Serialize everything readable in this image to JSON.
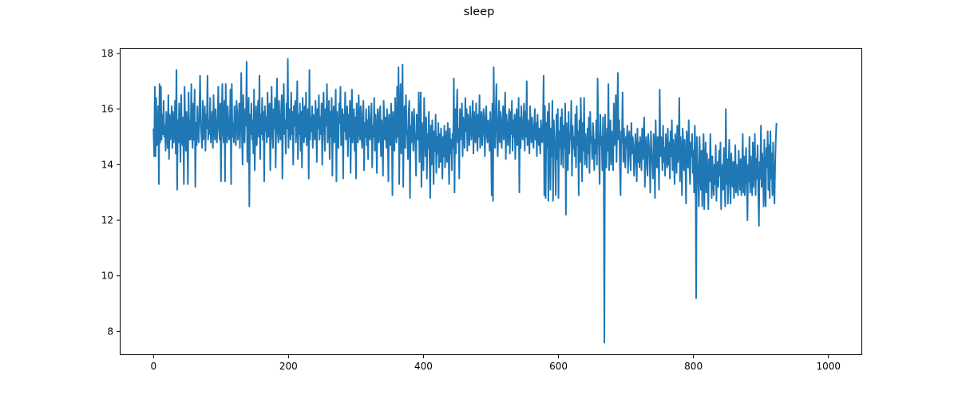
{
  "chart_data": {
    "type": "line",
    "title": "sleep",
    "xlabel": "",
    "ylabel": "",
    "xlim": [
      -50,
      1050
    ],
    "ylim": [
      7.15,
      18.2
    ],
    "x_ticks": [
      0,
      200,
      400,
      600,
      800,
      1000
    ],
    "y_ticks": [
      8,
      10,
      12,
      14,
      16,
      18
    ],
    "grid": false,
    "legend": "none",
    "series": [
      {
        "color": "#1f77b4",
        "x_start": 0,
        "x_step": 1,
        "values": [
          15.3,
          14.3,
          16.8,
          14.3,
          16.4,
          14.7,
          14.8,
          16.1,
          13.3,
          16.9,
          14.8,
          16.8,
          14.9,
          15.8,
          15.1,
          16.3,
          15.0,
          15.4,
          14.5,
          15.9,
          15.1,
          14.6,
          16.5,
          14.2,
          15.8,
          14.9,
          15.3,
          16.1,
          14.6,
          15.9,
          14.8,
          15.2,
          16.3,
          14.4,
          17.4,
          13.1,
          15.6,
          14.8,
          16.2,
          15.3,
          14.1,
          16.5,
          15.1,
          14.7,
          15.7,
          13.3,
          16.8,
          15.4,
          14.5,
          15.9,
          15.1,
          13.3,
          16.6,
          14.9,
          15.6,
          14.9,
          16.9,
          15.3,
          14.6,
          16.2,
          14.9,
          16.7,
          13.2,
          15.5,
          14.7,
          16.1,
          15.2,
          14.8,
          15.9,
          17.2,
          15.5,
          15.0,
          14.6,
          16.3,
          14.9,
          15.2,
          16.1,
          14.5,
          15.8,
          15.3,
          17.2,
          14.9,
          15.6,
          15.1,
          16.4,
          14.8,
          15.2,
          15.9,
          14.6,
          16.5,
          15.3,
          14.9,
          16.0,
          15.1,
          14.8,
          15.7,
          16.8,
          15.3,
          14.9,
          16.2,
          13.4,
          15.8,
          16.9,
          15.1,
          14.8,
          16.3,
          13.4,
          16.9,
          15.2,
          14.8,
          16.1,
          15.5,
          14.9,
          15.3,
          16.7,
          13.3,
          16.9,
          15.0,
          15.5,
          14.8,
          16.1,
          15.3,
          14.7,
          16.3,
          15.9,
          14.9,
          15.4,
          16.2,
          14.6,
          15.7,
          17.3,
          15.1,
          14.0,
          16.5,
          15.2,
          14.8,
          16.0,
          15.4,
          17.7,
          14.1,
          15.3,
          16.4,
          12.5,
          15.8,
          15.1,
          16.2,
          14.9,
          15.6,
          14.4,
          16.7,
          13.8,
          15.4,
          16.1,
          14.7,
          15.5,
          16.3,
          15.0,
          17.2,
          14.2,
          15.8,
          15.1,
          16.4,
          14.9,
          15.9,
          13.4,
          16.1,
          15.2,
          15.7,
          14.8,
          16.6,
          15.0,
          15.9,
          16.2,
          13.8,
          15.4,
          16.8,
          15.1,
          14.6,
          16.0,
          15.3,
          16.4,
          13.9,
          15.8,
          17.1,
          15.2,
          14.8,
          16.3,
          15.5,
          14.9,
          15.8,
          16.5,
          13.5,
          15.7,
          16.9,
          15.1,
          15.6,
          14.4,
          16.2,
          15.3,
          17.8,
          14.6,
          16.0,
          15.5,
          14.9,
          16.6,
          15.1,
          15.9,
          14.0,
          16.1,
          15.4,
          16.3,
          14.8,
          15.6,
          17.0,
          14.2,
          15.8,
          15.1,
          16.2,
          14.5,
          15.9,
          13.9,
          16.4,
          15.3,
          14.8,
          16.1,
          15.0,
          16.6,
          14.7,
          15.5,
          16.0,
          13.5,
          17.4,
          14.9,
          15.7,
          15.2,
          16.1,
          14.6,
          15.8,
          15.3,
          14.9,
          16.3,
          15.6,
          14.1,
          16.0,
          15.3,
          16.5,
          14.9,
          15.7,
          15.1,
          16.2,
          14.0,
          15.8,
          16.6,
          15.2,
          14.5,
          16.0,
          15.4,
          16.9,
          14.8,
          15.5,
          16.3,
          14.2,
          15.9,
          15.0,
          16.4,
          13.6,
          15.7,
          16.1,
          14.8,
          15.4,
          16.7,
          13.4,
          15.9,
          15.1,
          14.6,
          16.2,
          15.5,
          16.8,
          14.7,
          15.3,
          16.0,
          13.5,
          15.8,
          15.2,
          16.6,
          14.9,
          15.5,
          16.1,
          14.3,
          15.8,
          15.0,
          16.3,
          13.7,
          15.6,
          16.7,
          14.8,
          15.3,
          16.0,
          14.5,
          15.7,
          13.5,
          16.2,
          15.1,
          14.8,
          16.5,
          15.4,
          14.9,
          16.1,
          15.2,
          14.6,
          15.8,
          16.3,
          13.8,
          15.5,
          15.0,
          16.0,
          14.7,
          15.6,
          14.2,
          16.1,
          15.3,
          14.9,
          15.7,
          16.2,
          13.9,
          15.4,
          15.0,
          16.4,
          14.5,
          15.8,
          15.2,
          13.7,
          16.0,
          15.5,
          14.8,
          15.9,
          16.1,
          14.3,
          15.6,
          15.1,
          13.6,
          16.3,
          15.4,
          14.9,
          15.7,
          14.6,
          16.0,
          15.2,
          13.4,
          15.8,
          15.3,
          14.7,
          16.2,
          15.5,
          12.9,
          15.9,
          15.1,
          14.5,
          16.4,
          15.3,
          14.8,
          16.8,
          15.0,
          17.5,
          13.3,
          15.6,
          16.9,
          14.4,
          15.2,
          17.6,
          13.2,
          15.7,
          16.1,
          14.6,
          16.5,
          15.3,
          15.0,
          14.2,
          15.9,
          16.3,
          12.8,
          15.4,
          14.8,
          15.9,
          15.1,
          14.5,
          16.0,
          15.2,
          14.7,
          13.6,
          15.8,
          15.0,
          14.9,
          16.6,
          14.1,
          15.3,
          16.6,
          13.2,
          15.5,
          14.8,
          13.8,
          16.4,
          15.0,
          14.3,
          15.7,
          13.5,
          15.1,
          14.6,
          15.9,
          14.2,
          12.8,
          15.4,
          14.0,
          15.6,
          14.8,
          13.3,
          15.2,
          14.5,
          15.8,
          13.7,
          15.0,
          14.4,
          15.5,
          13.9,
          15.1,
          14.1,
          15.3,
          14.6,
          13.5,
          15.0,
          14.3,
          15.4,
          13.9,
          14.8,
          15.2,
          14.1,
          15.5,
          14.7,
          13.3,
          15.3,
          14.4,
          14.9,
          13.8,
          15.1,
          14.6,
          17.1,
          13.0,
          16.0,
          14.4,
          15.6,
          16.7,
          14.8,
          15.3,
          13.5,
          16.0,
          14.9,
          15.5,
          16.2,
          14.3,
          15.7,
          15.1,
          14.6,
          16.4,
          15.2,
          16.0,
          14.5,
          15.8,
          15.2,
          14.7,
          16.1,
          15.4,
          14.9,
          15.6,
          16.3,
          14.4,
          15.9,
          15.1,
          14.8,
          16.2,
          15.3,
          14.5,
          15.8,
          15.0,
          16.5,
          14.6,
          15.4,
          15.9,
          14.7,
          15.2,
          16.0,
          15.5,
          14.3,
          15.7,
          16.1,
          15.0,
          14.8,
          15.6,
          15.3,
          14.5,
          15.9,
          15.1,
          12.9,
          16.2,
          12.7,
          17.5,
          15.2,
          14.6,
          15.8,
          16.9,
          15.0,
          14.3,
          15.5,
          16.3,
          14.8,
          15.9,
          15.2,
          14.6,
          15.7,
          16.1,
          14.9,
          15.4,
          16.6,
          14.2,
          15.8,
          15.3,
          14.7,
          15.5,
          16.0,
          14.4,
          15.9,
          15.1,
          16.3,
          14.5,
          15.6,
          15.0,
          15.8,
          14.2,
          15.4,
          16.0,
          14.7,
          15.2,
          16.4,
          13.0,
          15.7,
          14.6,
          16.1,
          15.3,
          14.9,
          15.5,
          16.2,
          14.5,
          15.9,
          15.0,
          17.0,
          14.7,
          15.6,
          15.2,
          14.4,
          16.1,
          15.3,
          14.8,
          15.7,
          15.1,
          14.6,
          15.4,
          16.0,
          14.9,
          15.5,
          14.3,
          15.8,
          15.0,
          14.7,
          15.3,
          14.4,
          15.6,
          15.1,
          14.8,
          15.4,
          17.2,
          12.9,
          16.1,
          12.8,
          15.5,
          14.6,
          15.9,
          12.7,
          16.2,
          14.9,
          13.1,
          15.3,
          14.3,
          16.3,
          12.7,
          15.6,
          15.0,
          14.5,
          12.9,
          15.8,
          14.2,
          16.0,
          12.8,
          15.2,
          14.6,
          15.7,
          14.0,
          16.0,
          15.1,
          13.9,
          15.4,
          14.6,
          16.2,
          12.2,
          15.5,
          14.8,
          13.8,
          15.9,
          14.4,
          15.1,
          14.9,
          16.3,
          13.6,
          15.4,
          14.6,
          15.0,
          14.3,
          15.8,
          13.9,
          16.1,
          14.7,
          15.2,
          12.9,
          15.6,
          14.1,
          16.4,
          15.0,
          13.4,
          15.5,
          14.5,
          16.4,
          14.0,
          15.1,
          14.7,
          13.9,
          15.3,
          14.4,
          15.7,
          13.7,
          15.9,
          14.8,
          15.0,
          14.2,
          15.5,
          15.1,
          13.8,
          14.9,
          14.4,
          15.6,
          14.0,
          17.1,
          15.2,
          14.5,
          13.3,
          15.8,
          14.7,
          15.0,
          13.8,
          15.7,
          14.1,
          7.6,
          15.8,
          14.2,
          13.9,
          15.3,
          14.5,
          16.9,
          13.8,
          14.8,
          15.6,
          14.0,
          15.2,
          14.5,
          13.8,
          16.2,
          14.7,
          15.1,
          16.5,
          14.1,
          15.4,
          17.3,
          14.9,
          15.6,
          14.0,
          12.9,
          15.2,
          14.8,
          16.6,
          14.1,
          15.3,
          14.5,
          13.9,
          15.0,
          14.6,
          15.4,
          13.7,
          14.9,
          15.2,
          14.3,
          13.8,
          15.5,
          14.4,
          15.0,
          14.7,
          13.6,
          14.2,
          15.1,
          14.4,
          13.4,
          15.3,
          14.1,
          14.8,
          13.9,
          15.0,
          14.6,
          13.8,
          15.3,
          14.2,
          14.9,
          15.7,
          13.2,
          14.5,
          15.0,
          14.0,
          13.6,
          15.1,
          14.7,
          14.3,
          13.0,
          15.2,
          14.4,
          14.1,
          13.5,
          15.1,
          14.6,
          12.8,
          15.6,
          14.2,
          13.9,
          15.0,
          14.5,
          13.1,
          16.7,
          14.3,
          15.0,
          14.7,
          13.8,
          15.4,
          14.1,
          14.6,
          13.6,
          15.1,
          14.4,
          13.9,
          15.3,
          14.0,
          14.8,
          13.5,
          15.2,
          14.3,
          15.6,
          13.8,
          14.9,
          14.4,
          13.3,
          15.1,
          14.7,
          13.7,
          15.4,
          14.1,
          14.5,
          16.4,
          13.4,
          15.0,
          14.3,
          12.9,
          15.3,
          14.6,
          13.8,
          14.9,
          14.1,
          12.6,
          15.2,
          14.5,
          13.9,
          15.6,
          14.0,
          13.3,
          14.8,
          14.3,
          15.1,
          13.7,
          14.5,
          13.0,
          15.4,
          14.0,
          9.2,
          15.0,
          14.1,
          13.5,
          12.5,
          15.0,
          14.0,
          13.1,
          14.5,
          12.5,
          14.2,
          15.1,
          12.4,
          13.9,
          14.8,
          13.0,
          14.4,
          13.6,
          12.4,
          14.2,
          13.4,
          15.1,
          13.8,
          12.8,
          14.3,
          13.5,
          12.9,
          14.0,
          13.3,
          14.7,
          12.7,
          13.8,
          14.1,
          13.2,
          14.5,
          13.6,
          14.8,
          12.4,
          13.6,
          14.0,
          13.1,
          14.6,
          13.5,
          12.5,
          16.0,
          13.3,
          14.2,
          12.6,
          13.8,
          14.9,
          13.3,
          12.6,
          14.4,
          13.7,
          13.2,
          14.1,
          12.8,
          13.6,
          14.7,
          13.0,
          14.0,
          13.3,
          12.9,
          14.5,
          13.8,
          13.1,
          14.2,
          12.9,
          13.6,
          15.1,
          13.0,
          14.3,
          12.9,
          13.8,
          14.6,
          13.3,
          12.0,
          14.0,
          13.4,
          15.0,
          13.0,
          14.3,
          13.6,
          12.9,
          14.8,
          13.2,
          13.9,
          15.1,
          12.9,
          14.2,
          13.5,
          14.7,
          13.0,
          11.8,
          14.1,
          13.5,
          15.4,
          13.2,
          14.4,
          13.8,
          12.5,
          14.9,
          13.2,
          12.5,
          14.6,
          13.9,
          15.2,
          13.1,
          14.7,
          12.8,
          15.2,
          13.5,
          14.4,
          12.9,
          14.8,
          13.4,
          12.6,
          14.0,
          14.9,
          15.5
        ]
      }
    ]
  }
}
